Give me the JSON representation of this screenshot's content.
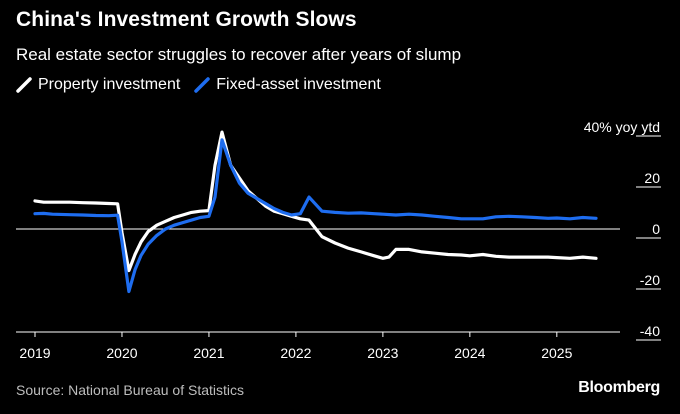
{
  "chart_data": {
    "type": "line",
    "title": "China's Investment Growth Slows",
    "subtitle": "Real estate sector struggles to recover after years of slump",
    "ylabel_unit": "40% yoy ytd",
    "ylim": [
      -45,
      40
    ],
    "y_ticks": [
      {
        "value": 20,
        "label": "20"
      },
      {
        "value": 0,
        "label": "0"
      },
      {
        "value": -20,
        "label": "-20"
      },
      {
        "value": -40,
        "label": "-40"
      }
    ],
    "x_range": [
      2019.0,
      2025.6
    ],
    "x_ticks": [
      {
        "value": 2019.0,
        "label": "2019"
      },
      {
        "value": 2020.0,
        "label": "2020"
      },
      {
        "value": 2021.0,
        "label": "2021"
      },
      {
        "value": 2022.0,
        "label": "2022"
      },
      {
        "value": 2023.0,
        "label": "2023"
      },
      {
        "value": 2024.0,
        "label": "2024"
      },
      {
        "value": 2025.0,
        "label": "2025"
      }
    ],
    "series": [
      {
        "name": "Property investment",
        "color": "#ffffff",
        "x": [
          2019.0,
          2019.1,
          2019.2,
          2019.4,
          2019.55,
          2019.7,
          2019.85,
          2019.95,
          2020.0,
          2020.08,
          2020.15,
          2020.22,
          2020.3,
          2020.4,
          2020.5,
          2020.6,
          2020.7,
          2020.8,
          2020.9,
          2021.0,
          2021.07,
          2021.15,
          2021.25,
          2021.35,
          2021.45,
          2021.55,
          2021.65,
          2021.75,
          2021.85,
          2021.95,
          2022.05,
          2022.15,
          2022.3,
          2022.45,
          2022.6,
          2022.75,
          2022.9,
          2023.0,
          2023.07,
          2023.15,
          2023.3,
          2023.45,
          2023.6,
          2023.75,
          2023.9,
          2024.0,
          2024.15,
          2024.3,
          2024.45,
          2024.6,
          2024.75,
          2024.9,
          2025.0,
          2025.15,
          2025.3,
          2025.45
        ],
        "values": [
          11,
          10.5,
          10.5,
          10.5,
          10.3,
          10.2,
          10,
          9.9,
          -1.5,
          -16.3,
          -10,
          -5,
          -1,
          1.5,
          3,
          4.5,
          5.5,
          6.5,
          7,
          7.2,
          25,
          38,
          25,
          20,
          15,
          12,
          9,
          7,
          6,
          5,
          4,
          3.5,
          -3,
          -5.5,
          -7.5,
          -9,
          -10.5,
          -11.5,
          -11,
          -8,
          -8,
          -9,
          -9.5,
          -10,
          -10.2,
          -10.5,
          -10,
          -10.7,
          -11,
          -11,
          -11,
          -11,
          -11.2,
          -11.5,
          -11,
          -11.5
        ]
      },
      {
        "name": "Fixed-asset investment",
        "color": "#1e6df0",
        "x": [
          2019.0,
          2019.1,
          2019.2,
          2019.4,
          2019.55,
          2019.7,
          2019.85,
          2019.95,
          2020.0,
          2020.08,
          2020.15,
          2020.22,
          2020.3,
          2020.4,
          2020.5,
          2020.6,
          2020.7,
          2020.8,
          2020.9,
          2021.0,
          2021.07,
          2021.15,
          2021.25,
          2021.35,
          2021.45,
          2021.55,
          2021.65,
          2021.75,
          2021.85,
          2021.95,
          2022.05,
          2022.15,
          2022.3,
          2022.45,
          2022.6,
          2022.75,
          2022.9,
          2023.0,
          2023.15,
          2023.3,
          2023.45,
          2023.6,
          2023.75,
          2023.9,
          2024.0,
          2024.15,
          2024.3,
          2024.45,
          2024.6,
          2024.75,
          2024.9,
          2025.0,
          2025.15,
          2025.3,
          2025.45
        ],
        "values": [
          6,
          6.1,
          5.8,
          5.6,
          5.5,
          5.3,
          5.2,
          5.4,
          -5,
          -24.5,
          -16,
          -10.3,
          -6,
          -2.5,
          0,
          1.5,
          2.5,
          3.5,
          4.5,
          5,
          12.5,
          35,
          25,
          18,
          14,
          12,
          10,
          8,
          6.5,
          5.5,
          6,
          12.5,
          7,
          6.5,
          6.2,
          6.3,
          6,
          5.8,
          5.5,
          5.8,
          5.5,
          5,
          4.5,
          4,
          4,
          4,
          4.8,
          5,
          4.8,
          4.5,
          4.2,
          4.3,
          4,
          4.5,
          4.2
        ]
      }
    ]
  },
  "legend": [
    {
      "label": "Property investment",
      "color": "#ffffff"
    },
    {
      "label": "Fixed-asset investment",
      "color": "#1e6df0"
    }
  ],
  "source": "Source: National Bureau of Statistics",
  "brand": "Bloomberg"
}
